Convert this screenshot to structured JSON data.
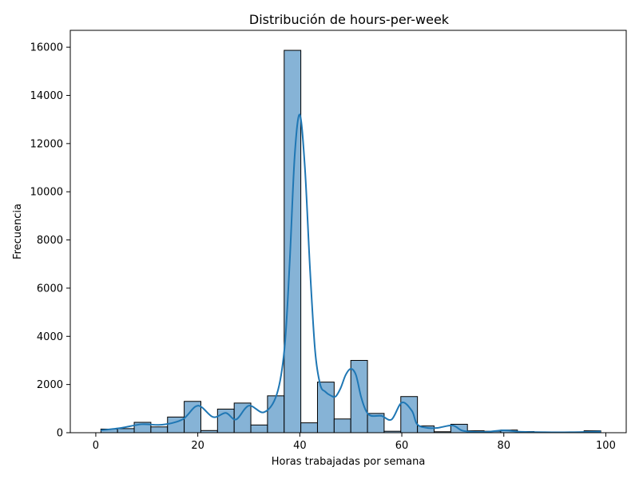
{
  "chart_data": {
    "type": "bar",
    "title": "Distribución de hours-per-week",
    "xlabel": "Horas trabajadas por semana",
    "ylabel": "Frecuencia",
    "xlim": [
      -5,
      104.0
    ],
    "ylim": [
      0,
      16700
    ],
    "xticks": [
      0,
      20,
      40,
      60,
      80,
      100
    ],
    "yticks": [
      0,
      2000,
      4000,
      6000,
      8000,
      10000,
      12000,
      14000,
      16000
    ],
    "bins": {
      "start": 1,
      "width": 3.2667,
      "counts": [
        150,
        170,
        430,
        240,
        650,
        1300,
        90,
        980,
        1230,
        320,
        1530,
        15870,
        410,
        2100,
        570,
        3000,
        800,
        60,
        1500,
        280,
        40,
        350,
        80,
        60,
        110,
        50,
        30,
        30,
        20,
        80
      ]
    },
    "kde": {
      "x": [
        1,
        5,
        9,
        13,
        17,
        20,
        23,
        25.5,
        27.5,
        30,
        33,
        35.5,
        37,
        38,
        39,
        40,
        41,
        42,
        43,
        44,
        45,
        46,
        47,
        48,
        49,
        50,
        51,
        52,
        53,
        54,
        56,
        58,
        60,
        62,
        63,
        65,
        67,
        70,
        72,
        76,
        80,
        83,
        88,
        93,
        99
      ],
      "y": [
        100,
        200,
        350,
        330,
        550,
        1120,
        650,
        820,
        550,
        1120,
        850,
        1600,
        3500,
        7000,
        11500,
        13200,
        11000,
        6800,
        3400,
        2000,
        1700,
        1550,
        1500,
        1850,
        2400,
        2650,
        2400,
        1500,
        900,
        700,
        700,
        550,
        1250,
        900,
        350,
        200,
        200,
        300,
        80,
        30,
        100,
        40,
        20,
        20,
        50
      ]
    },
    "colors": {
      "bar_fill": "#86b3d6",
      "bar_edge": "#000000",
      "kde_line": "#1f77b4"
    },
    "grid": false,
    "legend": "none"
  }
}
